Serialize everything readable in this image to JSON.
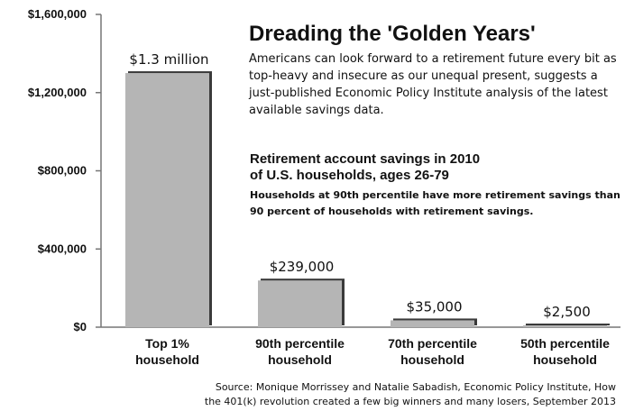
{
  "chart_data": {
    "type": "bar",
    "title": "Dreading the 'Golden Years'",
    "intro": "Americans can look forward to a retirement future every bit as top-heavy and insecure as our unequal present, suggests a just-published Economic Policy Institute analysis of the latest available savings data.",
    "subtitle_lines": [
      "Retirement account savings in 2010",
      "of U.S. households, ages 26-79"
    ],
    "note": "Households at 90th percentile have more retirement savings than 90 percent of households with retirement savings.",
    "categories": [
      [
        "Top 1%",
        "household"
      ],
      [
        "90th percentile",
        "household"
      ],
      [
        "70th percentile",
        "household"
      ],
      [
        "50th percentile",
        "household"
      ]
    ],
    "values": [
      1300000,
      239000,
      35000,
      2500
    ],
    "data_labels": [
      "$1.3 million",
      "$239,000",
      "$35,000",
      "$2,500"
    ],
    "y_ticks": [
      0,
      400000,
      800000,
      1200000,
      1600000
    ],
    "y_tick_labels": [
      "$0",
      "$400,000",
      "$800,000",
      "$1,200,000",
      "$1,600,000"
    ],
    "ylim": [
      0,
      1600000
    ],
    "grid": false,
    "colors": {
      "bar": "#b5b5b5",
      "bar_shadow": "#3a3a3a",
      "axis": "#777777"
    },
    "source_lines": [
      "Source: Monique Morrissey and Natalie Sabadish, Economic Policy Institute, How",
      "the 401(k) revolution created a few big winners and many losers, September 2013"
    ]
  }
}
